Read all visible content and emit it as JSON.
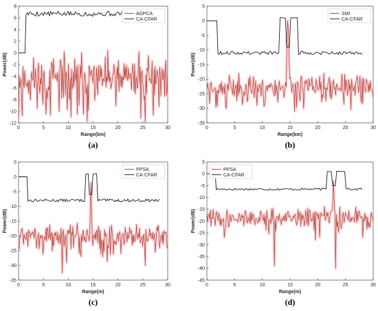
{
  "figure_colors": {
    "signal": "#b5392b",
    "signal_band": "#f4a7b3",
    "cfar": "#1a1a1a"
  },
  "chart_data": [
    {
      "id": "a",
      "type": "line",
      "panel_label": "(a)",
      "xlabel": "Range(km)",
      "ylabel": "Power(dB)",
      "xlim": [
        0,
        30
      ],
      "ylim": [
        -12,
        8
      ],
      "xticks": [
        0,
        5,
        10,
        15,
        20,
        25,
        30
      ],
      "yticks": [
        8,
        6,
        4,
        2,
        0,
        -2,
        -4,
        -6,
        -8,
        -10,
        -12
      ],
      "legend": [
        "ADPCA",
        "CA-CFAR"
      ],
      "legend_position": "top-right",
      "series": [
        {
          "name": "ADPCA",
          "color": "#b5392b",
          "kind": "noise",
          "spec": {
            "x0": 0,
            "x1": 30,
            "n": 240,
            "mean": -4.5,
            "amp": 2.8,
            "seed": 11,
            "dips": [
              [
                5.5,
                -10.5
              ],
              [
                8.2,
                -10
              ],
              [
                10.5,
                -11
              ],
              [
                11.8,
                -10.5
              ],
              [
                14.1,
                -9.8
              ],
              [
                24.6,
                -11.2
              ],
              [
                25.5,
                -12
              ]
            ],
            "peaks": [
              [
                24.2,
                0.2
              ],
              [
                26.1,
                -0.5
              ]
            ]
          }
        },
        {
          "name": "CA-CFAR",
          "color": "#1a1a1a",
          "kind": "cfar",
          "spec": {
            "x0": 0,
            "x1": 28.6,
            "n": 110,
            "base": 6.7,
            "amp": 0.45,
            "seed": 5,
            "pre": 1.3,
            "pre_level": 0
          }
        }
      ]
    },
    {
      "id": "b",
      "type": "line",
      "panel_label": "(b)",
      "xlabel": "Range(km)",
      "ylabel": "Power(dB)",
      "xlim": [
        0,
        30
      ],
      "ylim": [
        -35,
        5
      ],
      "xticks": [
        0,
        5,
        10,
        15,
        20,
        25,
        30
      ],
      "yticks": [
        5,
        0,
        -5,
        -10,
        -15,
        -20,
        -25,
        -30,
        -35
      ],
      "legend": [
        "SMI",
        "CA-CFAR"
      ],
      "legend_position": "top-right",
      "series": [
        {
          "name": "SMI",
          "color": "#b5392b",
          "kind": "noise",
          "spec": {
            "x0": 0,
            "x1": 30,
            "n": 240,
            "mean": -22.5,
            "amp": 2.8,
            "seed": 23,
            "dips": [
              [
                3.5,
                -30
              ],
              [
                9.0,
                -29
              ],
              [
                17.5,
                -30
              ],
              [
                26.0,
                -30.5
              ]
            ],
            "peaks": [
              [
                14.5,
                0
              ],
              [
                14.7,
                -3
              ]
            ]
          }
        },
        {
          "name": "CA-CFAR",
          "color": "#1a1a1a",
          "kind": "cfar",
          "spec": {
            "x0": 0,
            "x1": 28,
            "n": 110,
            "base": -11,
            "amp": 0.6,
            "seed": 9,
            "pre": 1.8,
            "pre_level": 0,
            "bump": [
              [
                13.0,
                16.5,
                1
              ]
            ],
            "notch": [
              14.6,
              -9
            ]
          }
        }
      ]
    },
    {
      "id": "c",
      "type": "line",
      "panel_label": "(c)",
      "xlabel": "Range(m)",
      "ylabel": "Power(dB)",
      "xlim": [
        0,
        30
      ],
      "ylim": [
        -35,
        5
      ],
      "xticks": [
        0,
        5,
        10,
        15,
        20,
        25,
        30
      ],
      "yticks": [
        5,
        0,
        -5,
        -10,
        -15,
        -20,
        -25,
        -30,
        -35
      ],
      "legend": [
        "PPSA",
        "CA-CFAR"
      ],
      "legend_position": "top-right",
      "series": [
        {
          "name": "PPSA",
          "color": "#b5392b",
          "kind": "noise",
          "spec": {
            "x0": 0,
            "x1": 30,
            "n": 240,
            "mean": -20,
            "amp": 2.8,
            "seed": 31,
            "dips": [
              [
                8.8,
                -32.5
              ],
              [
                9.7,
                -29
              ],
              [
                12.5,
                -27
              ],
              [
                25.5,
                -30
              ]
            ],
            "peaks": [
              [
                14.6,
                -2
              ]
            ]
          }
        },
        {
          "name": "CA-CFAR",
          "color": "#1a1a1a",
          "kind": "cfar",
          "spec": {
            "x0": 0,
            "x1": 28.3,
            "n": 110,
            "base": -8,
            "amp": 0.5,
            "seed": 13,
            "pre": 1.7,
            "pre_level": 0,
            "bump": [
              [
                13.5,
                15.8,
                1
              ]
            ],
            "notch": [
              14.6,
              -6
            ]
          }
        }
      ]
    },
    {
      "id": "d",
      "type": "line",
      "panel_label": "(d)",
      "xlabel": "Range(m)",
      "ylabel": "Power(dB)",
      "xlim": [
        0,
        30
      ],
      "ylim": [
        -45,
        5
      ],
      "xticks": [
        0,
        5,
        10,
        15,
        20,
        25,
        30
      ],
      "yticks": [
        5,
        0,
        -5,
        -10,
        -15,
        -20,
        -25,
        -30,
        -35,
        -40,
        -45
      ],
      "legend": [
        "PPSA",
        "CA-CFAR"
      ],
      "legend_position": "top-left",
      "series": [
        {
          "name": "PPSA",
          "color": "#b5392b",
          "kind": "noise",
          "spec": {
            "x0": 0,
            "x1": 30,
            "n": 240,
            "mean": -18.5,
            "amp": 2.8,
            "seed": 41,
            "dips": [
              [
                12.2,
                -39
              ],
              [
                23.2,
                -40
              ],
              [
                3.2,
                -27
              ],
              [
                19.6,
                -28
              ]
            ],
            "peaks": [
              [
                22.9,
                -3
              ]
            ]
          }
        },
        {
          "name": "CA-CFAR",
          "color": "#1a1a1a",
          "kind": "cfar",
          "spec": {
            "x0": 0,
            "x1": 28,
            "n": 110,
            "base": -6.5,
            "amp": 0.5,
            "seed": 17,
            "pre": 1.5,
            "pre_level": 0,
            "bump": [
              [
                21.6,
                25.0,
                1
              ]
            ],
            "notch": [
              23.0,
              -5
            ]
          }
        }
      ]
    }
  ]
}
